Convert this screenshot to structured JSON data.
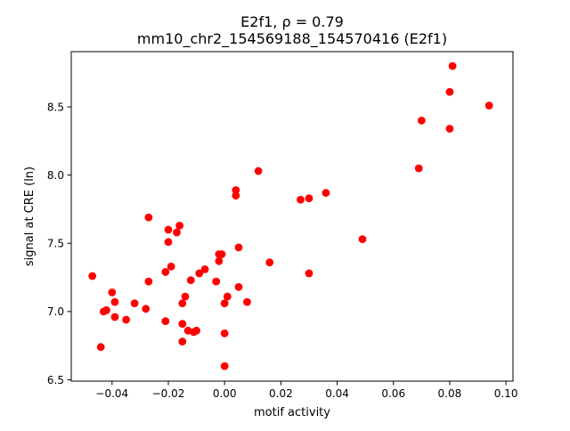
{
  "chart_data": {
    "type": "scatter",
    "title_line1": "E2f1, ρ = 0.79",
    "title_line2": "mm10_chr2_154569188_154570416 (E2f1)",
    "xlabel": "motif activity",
    "ylabel": "signal at CRE (ln)",
    "xlim": [
      -0.0545,
      0.1025
    ],
    "ylim": [
      6.49,
      8.905
    ],
    "x_ticks": [
      -0.04,
      -0.02,
      0.0,
      0.02,
      0.04,
      0.06,
      0.08,
      0.1
    ],
    "x_tick_labels": [
      "−0.04",
      "−0.02",
      "0.00",
      "0.02",
      "0.04",
      "0.06",
      "0.08",
      "0.10"
    ],
    "y_ticks": [
      6.5,
      7.0,
      7.5,
      8.0,
      8.5
    ],
    "y_tick_labels": [
      "6.5",
      "7.0",
      "7.5",
      "8.0",
      "8.5"
    ],
    "grid": false,
    "marker_color": "#ff0000",
    "points": [
      {
        "x": -0.047,
        "y": 7.26
      },
      {
        "x": -0.044,
        "y": 6.74
      },
      {
        "x": -0.043,
        "y": 7.0
      },
      {
        "x": -0.042,
        "y": 7.01
      },
      {
        "x": -0.04,
        "y": 7.14
      },
      {
        "x": -0.039,
        "y": 7.07
      },
      {
        "x": -0.039,
        "y": 6.96
      },
      {
        "x": -0.035,
        "y": 6.94
      },
      {
        "x": -0.032,
        "y": 7.06
      },
      {
        "x": -0.028,
        "y": 7.02
      },
      {
        "x": -0.027,
        "y": 7.69
      },
      {
        "x": -0.027,
        "y": 7.22
      },
      {
        "x": -0.021,
        "y": 7.29
      },
      {
        "x": -0.021,
        "y": 6.93
      },
      {
        "x": -0.02,
        "y": 7.6
      },
      {
        "x": -0.02,
        "y": 7.51
      },
      {
        "x": -0.019,
        "y": 7.33
      },
      {
        "x": -0.017,
        "y": 7.58
      },
      {
        "x": -0.016,
        "y": 7.63
      },
      {
        "x": -0.015,
        "y": 7.06
      },
      {
        "x": -0.015,
        "y": 6.91
      },
      {
        "x": -0.015,
        "y": 6.78
      },
      {
        "x": -0.014,
        "y": 7.11
      },
      {
        "x": -0.013,
        "y": 6.86
      },
      {
        "x": -0.012,
        "y": 7.23
      },
      {
        "x": -0.011,
        "y": 6.85
      },
      {
        "x": -0.01,
        "y": 6.86
      },
      {
        "x": -0.009,
        "y": 7.28
      },
      {
        "x": -0.007,
        "y": 7.31
      },
      {
        "x": -0.003,
        "y": 7.22
      },
      {
        "x": -0.002,
        "y": 7.42
      },
      {
        "x": -0.002,
        "y": 7.37
      },
      {
        "x": -0.001,
        "y": 7.42
      },
      {
        "x": 0.0,
        "y": 7.06
      },
      {
        "x": 0.0,
        "y": 6.84
      },
      {
        "x": 0.0,
        "y": 6.6
      },
      {
        "x": 0.001,
        "y": 7.11
      },
      {
        "x": 0.004,
        "y": 7.85
      },
      {
        "x": 0.004,
        "y": 7.89
      },
      {
        "x": 0.005,
        "y": 7.18
      },
      {
        "x": 0.005,
        "y": 7.47
      },
      {
        "x": 0.008,
        "y": 7.07
      },
      {
        "x": 0.012,
        "y": 8.03
      },
      {
        "x": 0.016,
        "y": 7.36
      },
      {
        "x": 0.027,
        "y": 7.82
      },
      {
        "x": 0.03,
        "y": 7.83
      },
      {
        "x": 0.03,
        "y": 7.28
      },
      {
        "x": 0.036,
        "y": 7.87
      },
      {
        "x": 0.049,
        "y": 7.53
      },
      {
        "x": 0.069,
        "y": 8.05
      },
      {
        "x": 0.07,
        "y": 8.4
      },
      {
        "x": 0.08,
        "y": 8.34
      },
      {
        "x": 0.08,
        "y": 8.61
      },
      {
        "x": 0.081,
        "y": 8.8
      },
      {
        "x": 0.094,
        "y": 8.51
      }
    ]
  }
}
